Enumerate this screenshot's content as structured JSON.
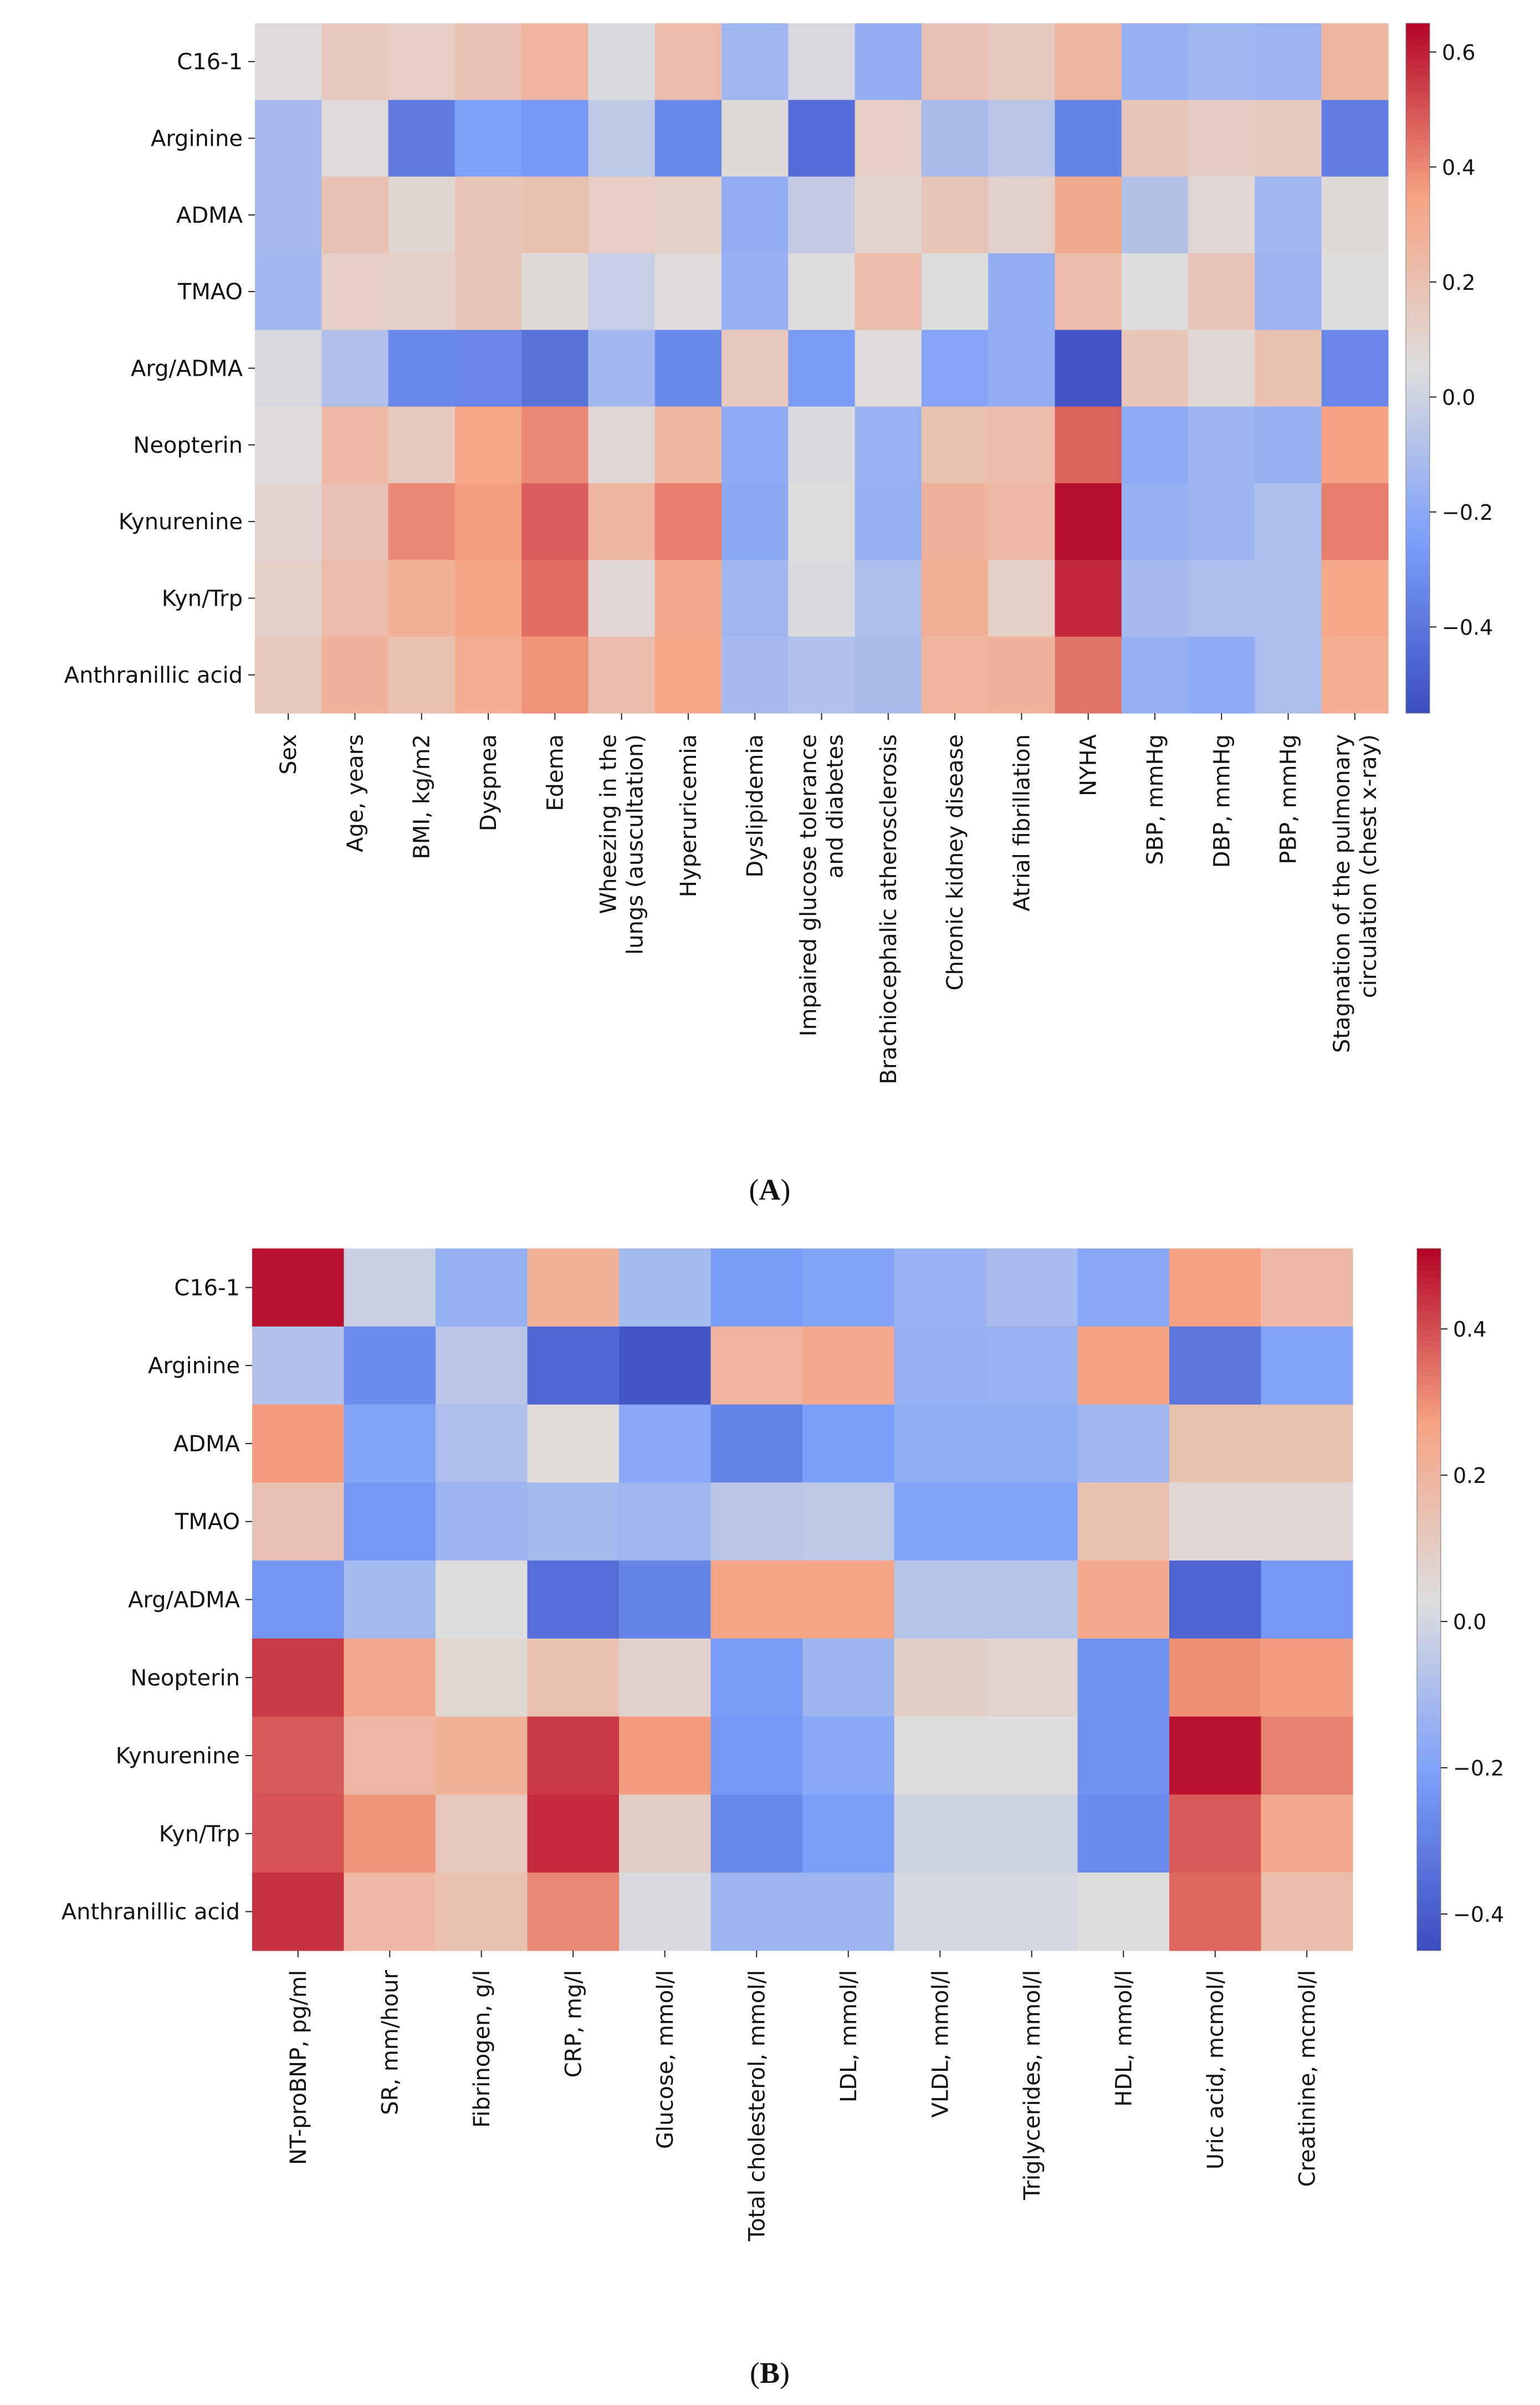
{
  "chart_data": [
    {
      "type": "heatmap",
      "panel_label": "A",
      "title": "",
      "rows": [
        "C16-1",
        "Arginine",
        "ADMA",
        "TMAO",
        "Arg/ADMA",
        "Neopterin",
        "Kynurenine",
        "Kyn/Trp",
        "Anthranillic acid"
      ],
      "columns": [
        {
          "lines": [
            "Sex"
          ]
        },
        {
          "lines": [
            "Age, years"
          ]
        },
        {
          "lines": [
            "BMI, kg/m2"
          ]
        },
        {
          "lines": [
            "Dyspnea"
          ]
        },
        {
          "lines": [
            "Edema"
          ]
        },
        {
          "lines": [
            "Wheezing in the",
            "lungs (auscultation)"
          ]
        },
        {
          "lines": [
            "Hyperuricemia"
          ]
        },
        {
          "lines": [
            "Dyslipidemia"
          ]
        },
        {
          "lines": [
            "Impaired glucose tolerance",
            "and diabetes"
          ]
        },
        {
          "lines": [
            "Brachiocephalic atherosclerosis"
          ]
        },
        {
          "lines": [
            "Chronic kidney disease"
          ]
        },
        {
          "lines": [
            "Atrial fibrillation"
          ]
        },
        {
          "lines": [
            "NYHA"
          ]
        },
        {
          "lines": [
            "SBP, mmHg"
          ]
        },
        {
          "lines": [
            "DBP, mmHg"
          ]
        },
        {
          "lines": [
            "PBP, mmHg"
          ]
        },
        {
          "lines": [
            "Stagnation of the pulmonary",
            "circulation (chest x-ray)"
          ]
        }
      ],
      "values": [
        [
          0.06,
          0.16,
          0.13,
          0.19,
          0.26,
          0.04,
          0.22,
          -0.14,
          0.03,
          -0.18,
          0.19,
          0.15,
          0.25,
          -0.17,
          -0.14,
          -0.15,
          0.25
        ],
        [
          -0.12,
          0.06,
          -0.38,
          -0.24,
          -0.27,
          -0.05,
          -0.33,
          0.07,
          -0.43,
          0.13,
          -0.11,
          -0.06,
          -0.35,
          0.17,
          0.14,
          0.16,
          -0.37
        ],
        [
          -0.12,
          0.19,
          0.09,
          0.18,
          0.2,
          0.13,
          0.12,
          -0.18,
          -0.03,
          0.1,
          0.17,
          0.11,
          0.31,
          -0.08,
          0.08,
          -0.14,
          0.07
        ],
        [
          -0.13,
          0.13,
          0.12,
          0.18,
          0.07,
          -0.02,
          0.06,
          -0.17,
          0.05,
          0.22,
          0.05,
          -0.18,
          0.22,
          0.05,
          0.18,
          -0.15,
          0.05
        ],
        [
          0.03,
          -0.09,
          -0.33,
          -0.34,
          -0.41,
          -0.13,
          -0.33,
          0.16,
          -0.26,
          0.06,
          -0.22,
          -0.18,
          -0.52,
          0.17,
          0.08,
          0.2,
          -0.34
        ],
        [
          0.06,
          0.24,
          0.16,
          0.33,
          0.4,
          0.08,
          0.25,
          -0.19,
          0.04,
          -0.16,
          0.2,
          0.22,
          0.47,
          -0.19,
          -0.15,
          -0.17,
          0.35
        ],
        [
          0.1,
          0.19,
          0.4,
          0.36,
          0.48,
          0.25,
          0.42,
          -0.2,
          0.05,
          -0.17,
          0.27,
          0.24,
          0.63,
          -0.17,
          -0.15,
          -0.1,
          0.42
        ],
        [
          0.12,
          0.22,
          0.28,
          0.34,
          0.45,
          0.08,
          0.32,
          -0.14,
          0.04,
          -0.1,
          0.29,
          0.12,
          0.58,
          -0.12,
          -0.1,
          -0.1,
          0.33
        ],
        [
          0.16,
          0.27,
          0.2,
          0.3,
          0.38,
          0.21,
          0.33,
          -0.12,
          -0.09,
          -0.11,
          0.26,
          0.27,
          0.44,
          -0.17,
          -0.19,
          -0.1,
          0.3
        ]
      ],
      "colorbar": {
        "min": -0.55,
        "max": 0.65,
        "ticks": [
          0.6,
          0.4,
          0.2,
          0.0,
          -0.2,
          -0.4
        ],
        "tick_labels": [
          "0.6",
          "0.4",
          "0.2",
          "0.0",
          "−0.2",
          "−0.4"
        ]
      },
      "colormap": "coolwarm"
    },
    {
      "type": "heatmap",
      "panel_label": "B",
      "title": "",
      "rows": [
        "C16-1",
        "Arginine",
        "ADMA",
        "TMAO",
        "Arg/ADMA",
        "Neopterin",
        "Kynurenine",
        "Kyn/Trp",
        "Anthranillic acid"
      ],
      "columns": [
        {
          "lines": [
            "NT-proBNP, pg/ml"
          ]
        },
        {
          "lines": [
            "SR, mm/hour"
          ]
        },
        {
          "lines": [
            "Fibrinogen, g/l"
          ]
        },
        {
          "lines": [
            "CRP, mg/l"
          ]
        },
        {
          "lines": [
            "Glucose, mmol/l"
          ]
        },
        {
          "lines": [
            "Total cholesterol, mmol/l"
          ]
        },
        {
          "lines": [
            "LDL, mmol/l"
          ]
        },
        {
          "lines": [
            "VLDL, mmol/l"
          ]
        },
        {
          "lines": [
            "Triglycerides, mmol/l"
          ]
        },
        {
          "lines": [
            "HDL, mmol/l"
          ]
        },
        {
          "lines": [
            "Uric acid, mcmol/l"
          ]
        },
        {
          "lines": [
            "Creatinine, mcmol/l"
          ]
        }
      ],
      "values": [
        [
          0.49,
          -0.02,
          -0.15,
          0.21,
          -0.11,
          -0.22,
          -0.19,
          -0.14,
          -0.1,
          -0.18,
          0.27,
          0.18
        ],
        [
          -0.08,
          -0.27,
          -0.06,
          -0.37,
          -0.42,
          0.2,
          0.25,
          -0.15,
          -0.14,
          0.27,
          -0.33,
          -0.19
        ],
        [
          0.28,
          -0.19,
          -0.09,
          0.04,
          -0.18,
          -0.29,
          -0.21,
          -0.16,
          -0.16,
          -0.12,
          0.15,
          0.15
        ],
        [
          0.14,
          -0.23,
          -0.13,
          -0.11,
          -0.12,
          -0.06,
          -0.05,
          -0.19,
          -0.19,
          0.15,
          0.05,
          0.05
        ],
        [
          -0.24,
          -0.11,
          0.03,
          -0.35,
          -0.29,
          0.26,
          0.26,
          -0.07,
          -0.07,
          0.25,
          -0.38,
          -0.23
        ],
        [
          0.43,
          0.24,
          0.06,
          0.15,
          0.08,
          -0.22,
          -0.13,
          0.09,
          0.07,
          -0.25,
          0.3,
          0.28
        ],
        [
          0.38,
          0.18,
          0.21,
          0.43,
          0.28,
          -0.23,
          -0.18,
          0.03,
          0.03,
          -0.25,
          0.49,
          0.32
        ],
        [
          0.39,
          0.29,
          0.12,
          0.45,
          0.09,
          -0.28,
          -0.21,
          -0.01,
          -0.01,
          -0.27,
          0.38,
          0.24
        ],
        [
          0.44,
          0.18,
          0.15,
          0.31,
          0.02,
          -0.13,
          -0.13,
          0.01,
          0.01,
          0.03,
          0.36,
          0.16
        ]
      ],
      "colorbar": {
        "min": -0.45,
        "max": 0.51,
        "ticks": [
          0.4,
          0.2,
          0.0,
          -0.2,
          -0.4
        ],
        "tick_labels": [
          "0.4",
          "0.2",
          "0.0",
          "−0.2",
          "−0.4"
        ]
      },
      "colormap": "coolwarm"
    }
  ]
}
